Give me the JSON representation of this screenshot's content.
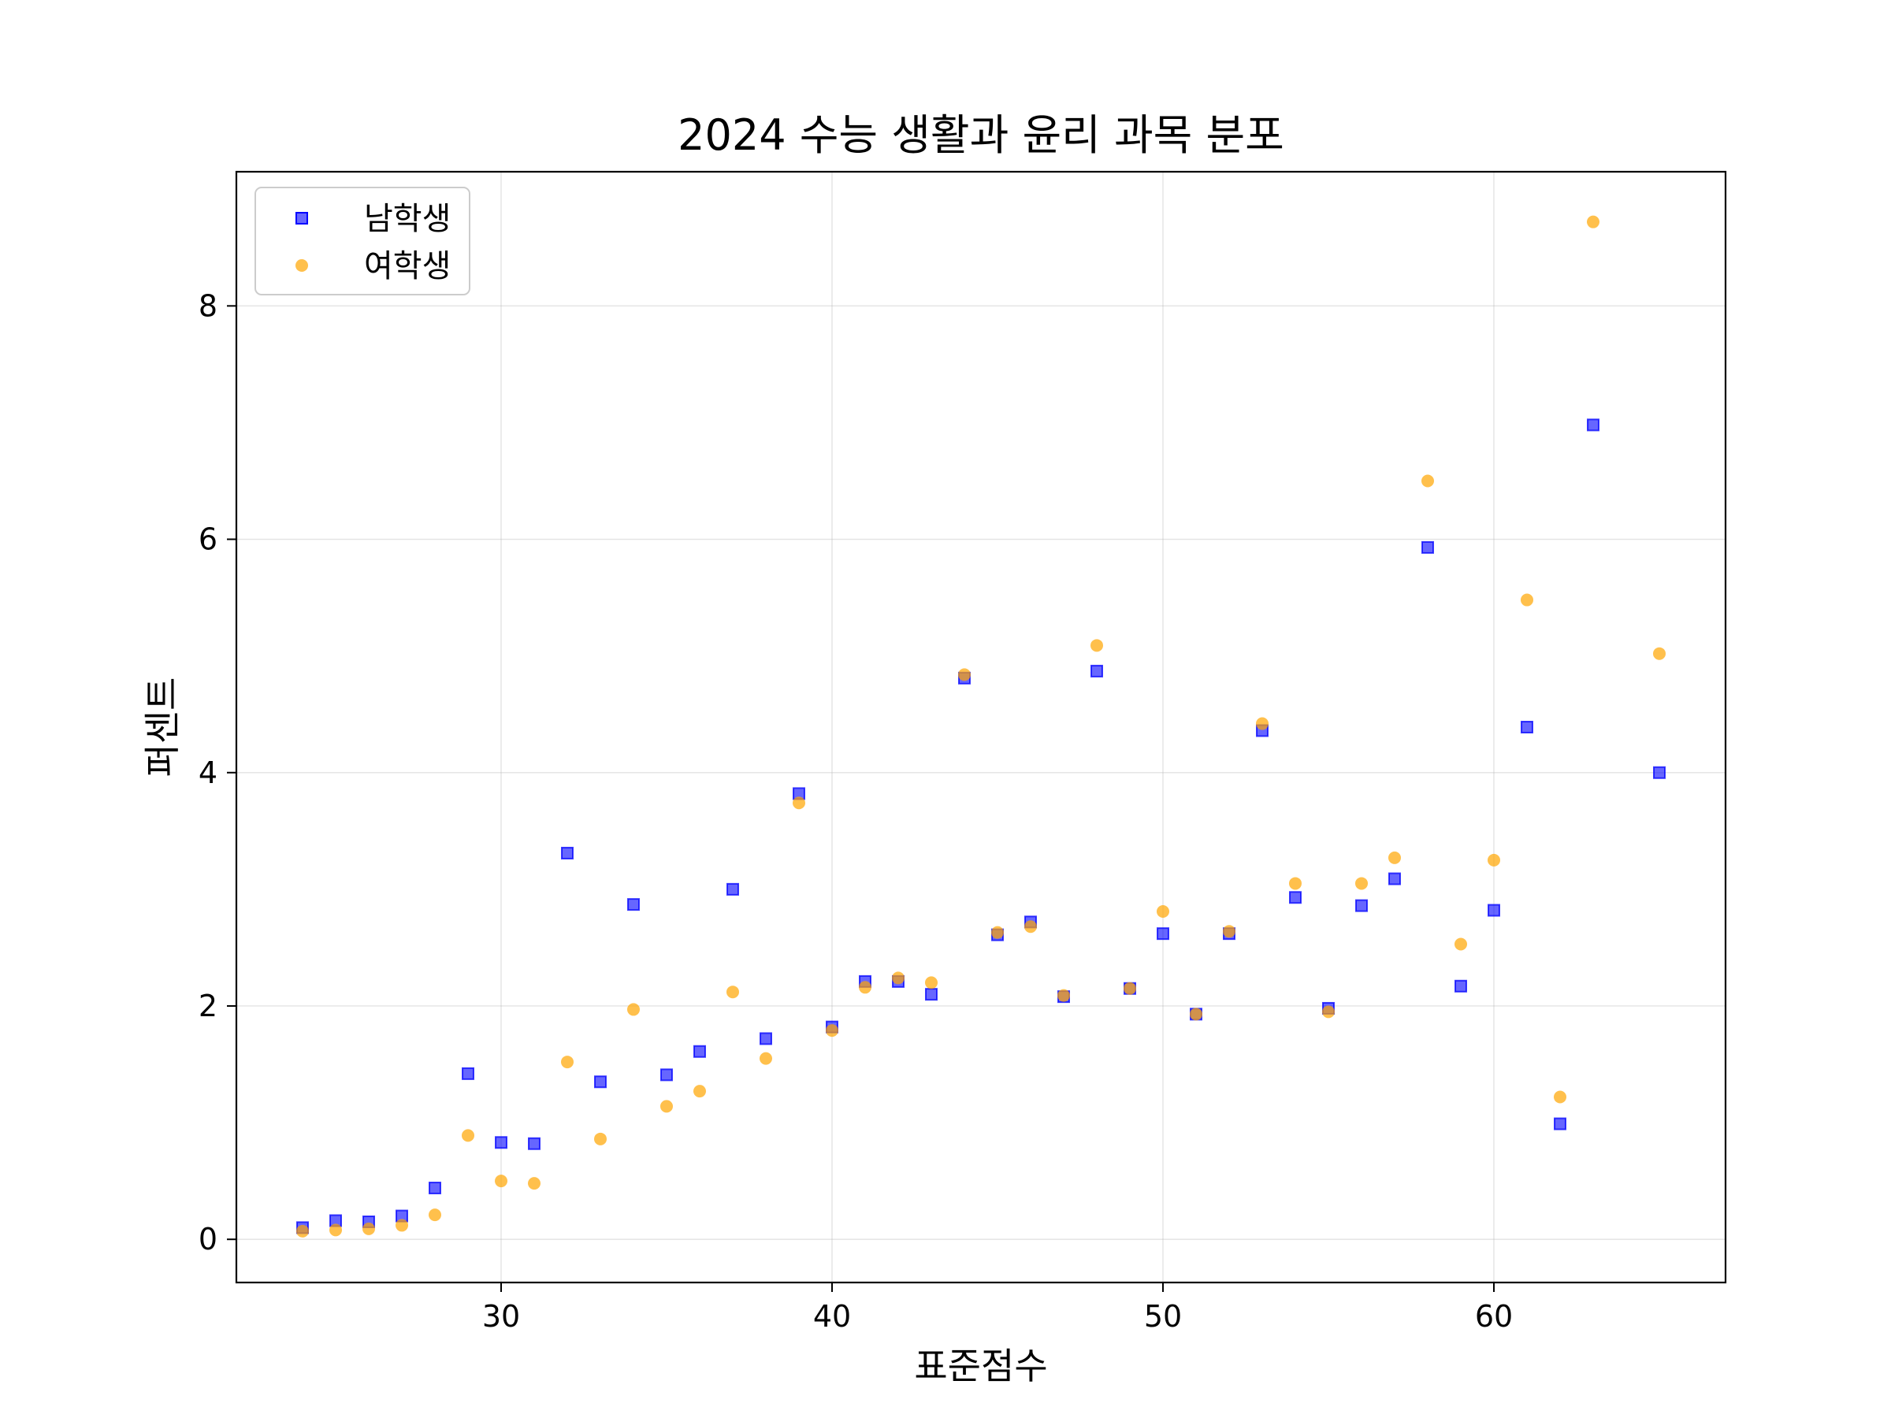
{
  "chart_data": {
    "type": "scatter",
    "title": "2024 수능 생활과 윤리 과목 분포",
    "xlabel": "표준점수",
    "ylabel": "퍼센트",
    "xlim": [
      22,
      67
    ],
    "ylim": [
      -0.37,
      9.15
    ],
    "xticks": [
      30,
      40,
      50,
      60
    ],
    "yticks": [
      0,
      2,
      4,
      6,
      8
    ],
    "grid": true,
    "legend_position": "top-left",
    "x": [
      24,
      25,
      26,
      27,
      28,
      29,
      30,
      31,
      32,
      33,
      34,
      35,
      36,
      37,
      38,
      39,
      40,
      41,
      42,
      43,
      44,
      45,
      46,
      47,
      48,
      49,
      50,
      51,
      52,
      53,
      54,
      55,
      56,
      57,
      58,
      59,
      60,
      61,
      62,
      63,
      65
    ],
    "series": [
      {
        "name": "남학생",
        "marker": "square",
        "color": "#0000ff",
        "values": [
          0.1,
          0.16,
          0.15,
          0.2,
          0.44,
          1.42,
          0.83,
          0.82,
          3.31,
          1.35,
          2.87,
          1.41,
          1.61,
          3.0,
          1.72,
          3.82,
          1.82,
          2.21,
          2.21,
          2.1,
          4.81,
          2.61,
          2.72,
          2.08,
          4.87,
          2.15,
          2.62,
          1.93,
          2.62,
          4.36,
          2.93,
          1.98,
          2.86,
          3.09,
          5.93,
          2.17,
          2.82,
          4.39,
          0.99,
          6.98,
          4.0
        ]
      },
      {
        "name": "여학생",
        "marker": "circle",
        "color": "#ffa500",
        "values": [
          0.07,
          0.08,
          0.09,
          0.12,
          0.21,
          0.89,
          0.5,
          0.48,
          1.52,
          0.86,
          1.97,
          1.14,
          1.27,
          2.12,
          1.55,
          3.74,
          1.79,
          2.16,
          2.24,
          2.2,
          4.84,
          2.63,
          2.68,
          2.09,
          5.09,
          2.15,
          2.81,
          1.93,
          2.64,
          4.42,
          3.05,
          1.95,
          3.05,
          3.27,
          6.5,
          2.53,
          3.25,
          5.48,
          1.22,
          8.72,
          5.02
        ]
      }
    ]
  }
}
